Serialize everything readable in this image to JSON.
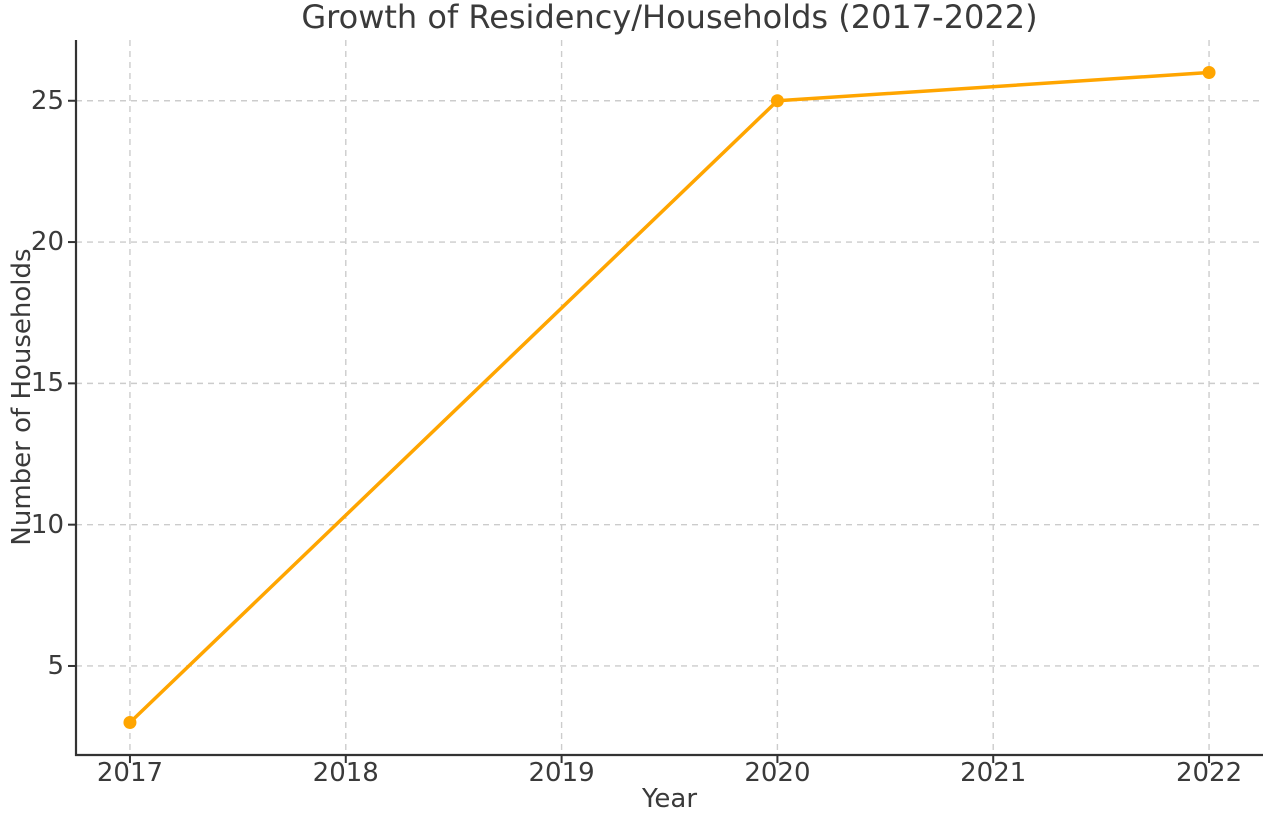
{
  "chart_data": {
    "type": "line",
    "title": "Growth of Residency/Households (2017-2022)",
    "xlabel": "Year",
    "ylabel": "Number of Households",
    "x": [
      2017,
      2020,
      2022
    ],
    "y": [
      3,
      25,
      26
    ],
    "x_ticks": [
      2017,
      2018,
      2019,
      2020,
      2021,
      2022
    ],
    "y_ticks": [
      5,
      10,
      15,
      20,
      25
    ],
    "xlim": [
      2016.75,
      2022.25
    ],
    "ylim": [
      1.85,
      27.15
    ],
    "grid": "dashed",
    "legend": "none",
    "marker": "circle",
    "colors": {
      "line": "#FFA500",
      "grid": "#cccccc",
      "spine": "#333333",
      "text": "#3a3a3a",
      "background": "#ffffff"
    }
  }
}
